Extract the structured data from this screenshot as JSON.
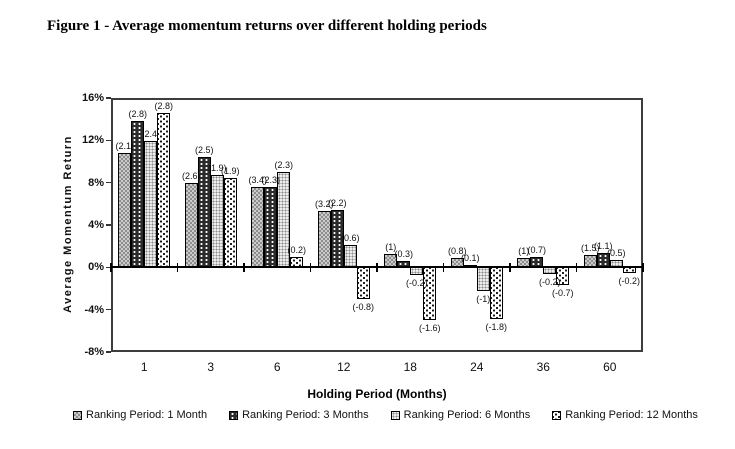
{
  "figure_title": "Figure 1 - Average momentum returns over different holding periods",
  "chart_data": {
    "type": "bar",
    "title": "Figure 1 - Average momentum returns over different holding periods",
    "xlabel": "Holding Period (Months)",
    "ylabel": "Average Momentum Return",
    "ylim": [
      -8,
      16
    ],
    "yticks": [
      16,
      12,
      8,
      4,
      0,
      -4,
      -8
    ],
    "ytick_labels": [
      "16%",
      "12%",
      "8%",
      "4%",
      "0%",
      "-4%",
      "-8%"
    ],
    "grid": false,
    "legend_position": "bottom",
    "categories": [
      "1",
      "3",
      "6",
      "12",
      "18",
      "24",
      "36",
      "60"
    ],
    "series": [
      {
        "name": "Ranking Period: 1 Month",
        "values": [
          10.8,
          8.0,
          7.6,
          5.3,
          1.3,
          0.9,
          0.9,
          1.2
        ],
        "point_labels": [
          "(2.1)",
          "(2.6)",
          "(3.4)",
          "(3.2)",
          "(1)",
          "(0.8)",
          "(1)",
          "(1.5)"
        ]
      },
      {
        "name": "Ranking Period: 3 Months",
        "values": [
          13.8,
          10.4,
          7.6,
          5.4,
          0.6,
          0.2,
          1.0,
          1.4
        ],
        "point_labels": [
          "(2.8)",
          "(2.5)",
          "(2.3)",
          "(2.2)",
          "(0.3)",
          "(0.1)",
          "(0.7)",
          "(1.1)"
        ]
      },
      {
        "name": "Ranking Period: 6 Months",
        "values": [
          11.9,
          8.7,
          9.0,
          2.1,
          -0.7,
          -2.2,
          -0.6,
          0.7
        ],
        "point_labels": [
          "2.4",
          "(1.9)",
          "(2.3)",
          "(0.6)",
          "(-0.2)",
          "(-1)",
          "(-0.2)",
          "(0.5)"
        ]
      },
      {
        "name": "Ranking Period: 12 Months",
        "values": [
          14.6,
          8.4,
          1.0,
          -3.0,
          -5.0,
          -4.9,
          -1.7,
          -0.5
        ],
        "point_labels": [
          "(2.8)",
          "(1.9)",
          "(0.2)",
          "(-0.8)",
          "(-1.6)",
          "(-1.8)",
          "(-0.7)",
          "(-0.2)"
        ]
      }
    ]
  }
}
